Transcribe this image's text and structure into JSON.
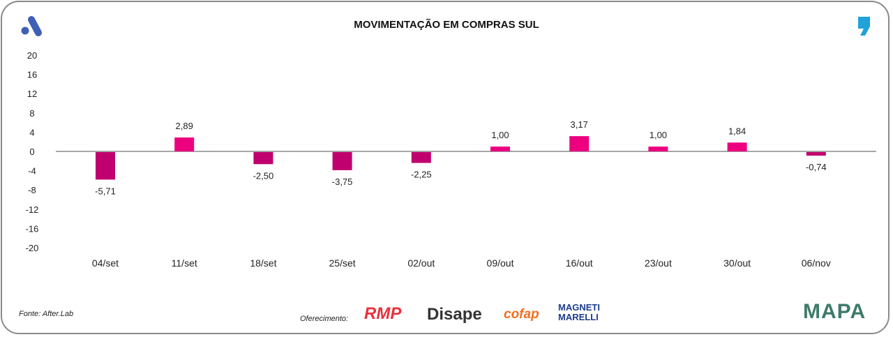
{
  "chart_data": {
    "type": "bar",
    "title": "MOVIMENTAÇÃO EM COMPRAS SUL",
    "categories": [
      "04/set",
      "11/set",
      "18/set",
      "25/set",
      "02/out",
      "09/out",
      "16/out",
      "23/out",
      "30/out",
      "06/nov"
    ],
    "values": [
      -5.71,
      2.89,
      -2.5,
      -3.75,
      -2.25,
      1.0,
      3.17,
      1.0,
      1.84,
      -0.74
    ],
    "value_labels": [
      "-5,71",
      "2,89",
      "-2,50",
      "-3,75",
      "-2,25",
      "1,00",
      "3,17",
      "1,00",
      "1,84",
      "-0,74"
    ],
    "yticks": [
      20,
      16,
      12,
      8,
      4,
      0,
      -4,
      -8,
      -12,
      -16,
      -20
    ],
    "ylim": [
      -20,
      20
    ],
    "xlabel": "",
    "ylabel": "",
    "grid": false,
    "colors": {
      "positive": "#ec0080",
      "negative": "#c0006e",
      "zero_line": "#8a8a8a"
    }
  },
  "footer": {
    "source": "Fonte: After.Lab",
    "sponsor_label": "Oferecimento:",
    "sponsors": [
      "RMP",
      "Disape",
      "cofap",
      "MAGNETI MARELLI"
    ],
    "brand": "MAPA"
  }
}
